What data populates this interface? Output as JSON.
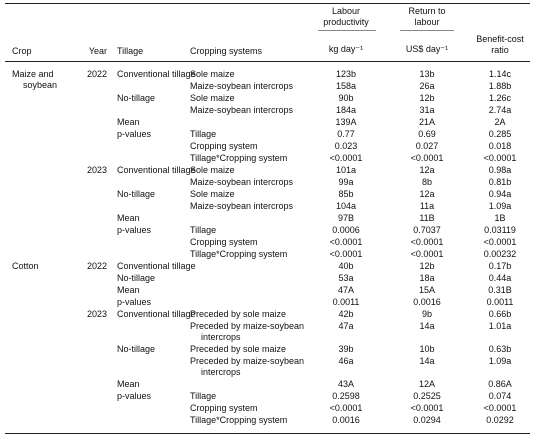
{
  "header": {
    "group_labels": [
      "Labour productivity",
      "Return to labour"
    ],
    "columns": [
      "Crop",
      "Year",
      "Tillage",
      "Cropping systems",
      "kg day⁻¹",
      "US$ day⁻¹",
      "Benefit-cost ratio"
    ]
  },
  "rows": [
    [
      "Maize and soybean",
      "2022",
      "Conventional tillage",
      "Sole maize",
      "123b",
      "13b",
      "1.14c"
    ],
    [
      null,
      null,
      null,
      "Maize-soybean intercrops",
      "158a",
      "26a",
      "1.88b"
    ],
    [
      null,
      null,
      "No-tillage",
      "Sole maize",
      "90b",
      "12b",
      "1.26c"
    ],
    [
      null,
      null,
      null,
      "Maize-soybean intercrops",
      "184a",
      "31a",
      "2.74a"
    ],
    [
      null,
      null,
      "Mean",
      null,
      "139A",
      "21A",
      "2A"
    ],
    [
      null,
      null,
      "p-values",
      "Tillage",
      "0.77",
      "0.69",
      "0.285"
    ],
    [
      null,
      null,
      null,
      "Cropping system",
      "0.023",
      "0.027",
      "0.018"
    ],
    [
      null,
      null,
      null,
      "Tillage*Cropping system",
      "<0.0001",
      "<0.0001",
      "<0.0001"
    ],
    [
      null,
      "2023",
      "Conventional tillage",
      "Sole maize",
      "101a",
      "12a",
      "0.98a"
    ],
    [
      null,
      null,
      null,
      "Maize-soybean intercrops",
      "99a",
      "8b",
      "0.81b"
    ],
    [
      null,
      null,
      "No-tillage",
      "Sole maize",
      "85b",
      "12a",
      "0.94a"
    ],
    [
      null,
      null,
      null,
      "Maize-soybean intercrops",
      "104a",
      "11a",
      "1.09a"
    ],
    [
      null,
      null,
      "Mean",
      null,
      "97B",
      "11B",
      "1B"
    ],
    [
      null,
      null,
      "p-values",
      "Tillage",
      "0.0006",
      "0.7037",
      "0.03119"
    ],
    [
      null,
      null,
      null,
      "Cropping system",
      "<0.0001",
      "<0.0001",
      "<0.0001"
    ],
    [
      null,
      null,
      null,
      "Tillage*Cropping system",
      "<0.0001",
      "<0.0001",
      "0.00232"
    ],
    [
      "Cotton",
      "2022",
      "Conventional tillage",
      null,
      "40b",
      "12b",
      "0.17b"
    ],
    [
      null,
      null,
      "No-tillage",
      null,
      "53a",
      "18a",
      "0.44a"
    ],
    [
      null,
      null,
      "Mean",
      null,
      "47A",
      "15A",
      "0.31B"
    ],
    [
      null,
      null,
      "p-values",
      null,
      "0.0011",
      "0.0016",
      "0.0011"
    ],
    [
      null,
      "2023",
      "Conventional tillage",
      "Preceded by sole maize",
      "42b",
      "9b",
      "0.66b"
    ],
    [
      null,
      null,
      null,
      "Preceded by maize-soybean intercrops",
      "47a",
      "14a",
      "1.01a"
    ],
    [
      null,
      null,
      "No-tillage",
      "Preceded by sole maize",
      "39b",
      "10b",
      "0.63b"
    ],
    [
      null,
      null,
      null,
      "Preceded by maize-soybean intercrops",
      "46a",
      "14a",
      "1.09a"
    ],
    [
      null,
      null,
      "Mean",
      null,
      "43A",
      "12A",
      "0.86A"
    ],
    [
      null,
      null,
      "p-values",
      "Tillage",
      "0.2598",
      "0.2525",
      "0.074"
    ],
    [
      null,
      null,
      null,
      "Cropping system",
      "<0.0001",
      "<0.0001",
      "<0.0001"
    ],
    [
      null,
      null,
      null,
      "Tillage*Cropping system",
      "0.0016",
      "0.0294",
      "0.0292"
    ]
  ]
}
